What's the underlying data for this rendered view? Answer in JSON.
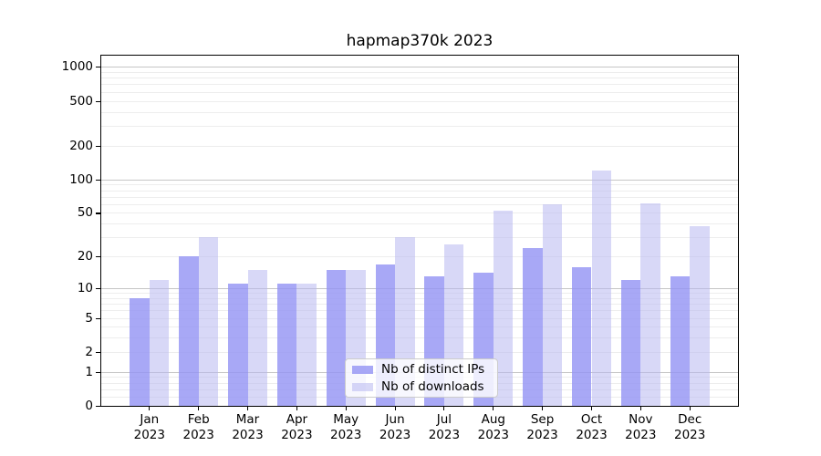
{
  "figure": {
    "title": "hapmap370k 2023"
  },
  "chart_data": {
    "type": "bar",
    "title": "hapmap370k 2023",
    "x_tick_months": [
      "Jan",
      "Feb",
      "Mar",
      "Apr",
      "May",
      "Jun",
      "Jul",
      "Aug",
      "Sep",
      "Oct",
      "Nov",
      "Dec"
    ],
    "x_tick_year": "2023",
    "series": [
      {
        "name": "Nb of distinct IPs",
        "color": "rgba(146,146,244,0.8)",
        "values": [
          8,
          20,
          11,
          11,
          15,
          17,
          13,
          14,
          24,
          16,
          12,
          13
        ]
      },
      {
        "name": "Nb of downloads",
        "color": "rgba(184,184,241,0.55)",
        "values": [
          12,
          30,
          15,
          11,
          15,
          30,
          26,
          52,
          60,
          120,
          61,
          38
        ]
      }
    ],
    "yscale": "log1p",
    "yticks": [
      0,
      1,
      2,
      5,
      10,
      20,
      50,
      100,
      200,
      500,
      1000
    ],
    "ylim": [
      0,
      1280
    ],
    "grid": {
      "major_values": [
        1,
        10,
        100,
        1000
      ],
      "minor_sub1_values": [
        0.2,
        0.4,
        0.6,
        0.8
      ],
      "minor_mantissas": [
        2,
        3,
        4,
        5,
        6,
        7,
        8,
        9
      ],
      "major_color": "#c6c6c6",
      "minor_color": "#ededed"
    },
    "legend_position": "lower center inside",
    "bar_group_width_fraction": 0.8
  }
}
